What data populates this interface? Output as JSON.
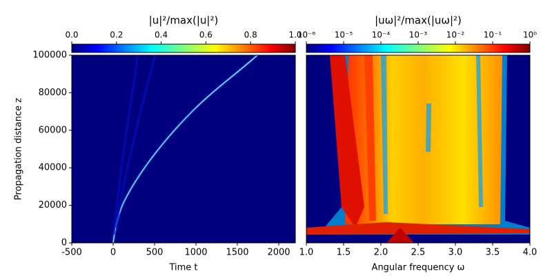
{
  "chart_data": [
    {
      "type": "heatmap",
      "title": "|u|²/max(|u|²)",
      "xlabel": "Time t",
      "ylabel": "Propagation distance z",
      "xlim": [
        -500,
        2200
      ],
      "xticks": [
        -500,
        0,
        500,
        1000,
        1500,
        2000
      ],
      "ylim": [
        0,
        100000
      ],
      "yticks": [
        0,
        20000,
        40000,
        60000,
        80000,
        100000
      ],
      "colormap": "jet",
      "colorbar_lim": [
        0,
        1
      ],
      "colorbar_log": false,
      "colorbar_ticks": [
        {
          "value": 0,
          "label": "0.0"
        },
        {
          "value": 0.2,
          "label": "0.2"
        },
        {
          "value": 0.4,
          "label": "0.4"
        },
        {
          "value": 0.6,
          "label": "0.6"
        },
        {
          "value": 0.8,
          "label": "0.8"
        },
        {
          "value": 1,
          "label": "1.0"
        }
      ]
    },
    {
      "type": "heatmap",
      "title": "|uω|²/max(|uω|²)",
      "xlabel": "Angular frequency ω",
      "xlim": [
        1,
        4
      ],
      "xticks": [
        {
          "value": 1,
          "label": "1.0"
        },
        {
          "value": 1.5,
          "label": "1.5"
        },
        {
          "value": 2,
          "label": "2.0"
        },
        {
          "value": 2.5,
          "label": "2.5"
        },
        {
          "value": 3,
          "label": "3.0"
        },
        {
          "value": 3.5,
          "label": "3.5"
        },
        {
          "value": 4,
          "label": "4.0"
        }
      ],
      "ylim": [
        0,
        100000
      ],
      "colormap": "jet",
      "colorbar_lim": [
        1e-06,
        1
      ],
      "colorbar_log": true,
      "colorbar_ticks": [
        {
          "value": 1e-06,
          "label": "10⁻⁶"
        },
        {
          "value": 1e-05,
          "label": "10⁻⁵"
        },
        {
          "value": 0.0001,
          "label": "10⁻⁴"
        },
        {
          "value": 0.001,
          "label": "10⁻³"
        },
        {
          "value": 0.01,
          "label": "10⁻²"
        },
        {
          "value": 0.1,
          "label": "10⁻¹"
        },
        {
          "value": 1,
          "label": "10⁰"
        }
      ]
    }
  ]
}
